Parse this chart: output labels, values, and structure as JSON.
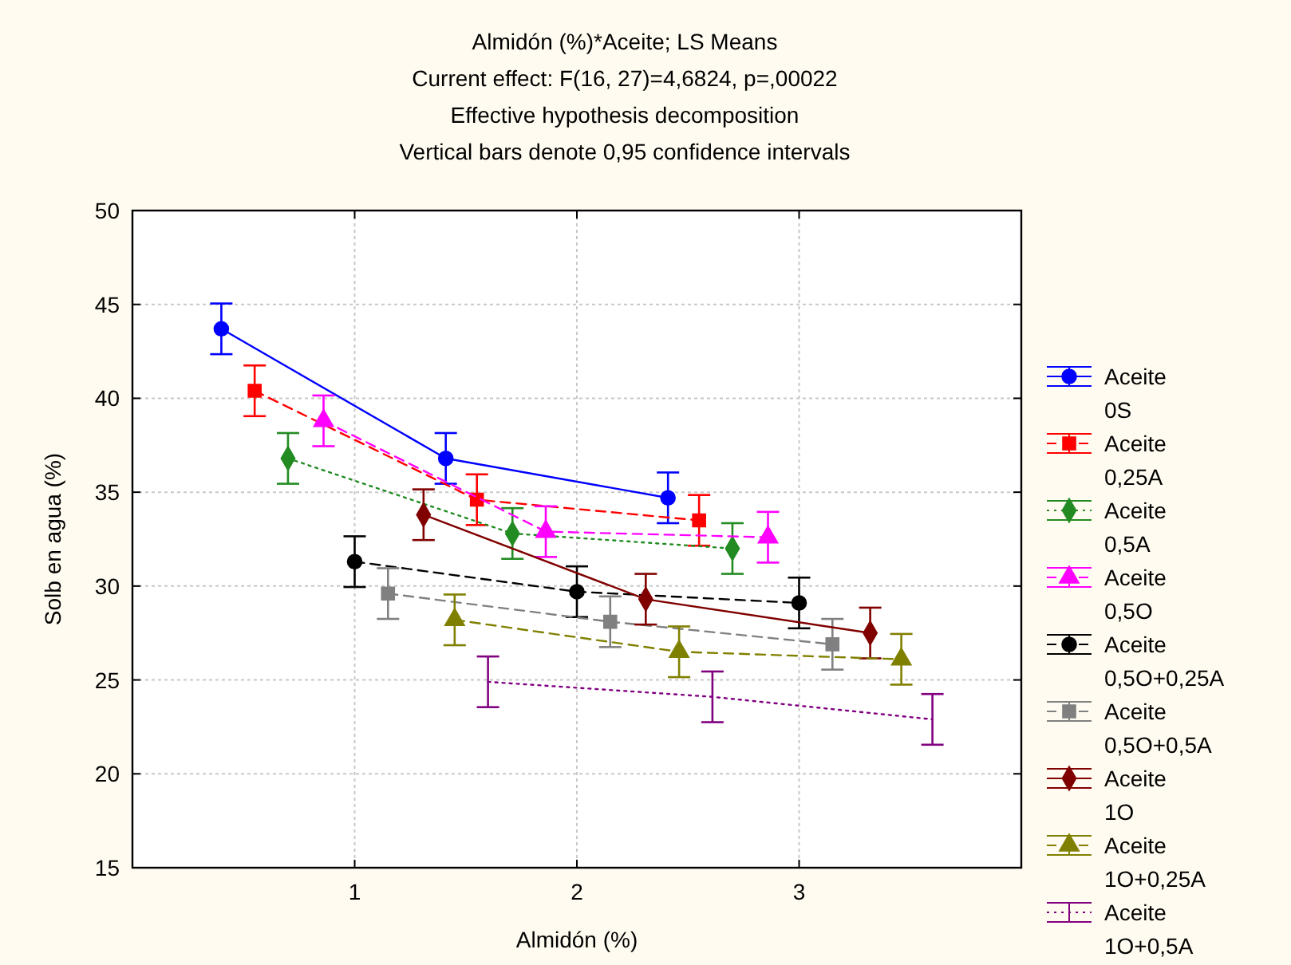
{
  "chart_data": {
    "type": "line",
    "title": "Almidón (%)*Aceite; LS Means",
    "subtitle": "Current effect: F(16, 27)=4,6824, p=,00022",
    "annotations": [
      "Effective hypothesis decomposition",
      "Vertical bars denote 0,95 confidence intervals"
    ],
    "xlabel": "Almidón (%)",
    "ylabel": "Solb en agua (%)",
    "xlim": [
      0,
      4
    ],
    "xticks": [
      1,
      2,
      3
    ],
    "ylim": [
      15,
      50
    ],
    "yticks": [
      15,
      20,
      25,
      30,
      35,
      40,
      45,
      50
    ],
    "grid": true,
    "legend": "right",
    "series": [
      {
        "name": "Aceite 0S",
        "color": "#0000ff",
        "marker": "circle",
        "line_style": "solid",
        "x": [
          0.4,
          1.41,
          2.41
        ],
        "values": [
          43.7,
          36.8,
          34.7
        ],
        "errors": [
          1.35,
          1.35,
          1.35
        ]
      },
      {
        "name": "Aceite 0,25A",
        "color": "#ff0000",
        "marker": "square",
        "line_style": "dashed",
        "x": [
          0.55,
          1.55,
          2.55
        ],
        "values": [
          40.4,
          34.6,
          33.5
        ],
        "errors": [
          1.35,
          1.35,
          1.35
        ]
      },
      {
        "name": "Aceite 0,5A",
        "color": "#228b22",
        "marker": "diamond",
        "line_style": "dotted",
        "x": [
          0.7,
          1.71,
          2.7
        ],
        "values": [
          36.8,
          32.8,
          32.0
        ],
        "errors": [
          1.35,
          1.35,
          1.35
        ]
      },
      {
        "name": "Aceite 0,5O",
        "color": "#ff00ff",
        "marker": "triangle",
        "line_style": "dashed",
        "x": [
          0.86,
          1.86,
          2.86
        ],
        "values": [
          38.8,
          32.9,
          32.6
        ],
        "errors": [
          1.35,
          1.35,
          1.35
        ]
      },
      {
        "name": "Aceite 0,5O+0,25A",
        "color": "#000000",
        "marker": "circle",
        "line_style": "dashed",
        "x": [
          1.0,
          2.0,
          3.0
        ],
        "values": [
          31.3,
          29.7,
          29.1
        ],
        "errors": [
          1.35,
          1.35,
          1.35
        ]
      },
      {
        "name": "Aceite 0,5O+0,5A",
        "color": "#808080",
        "marker": "square",
        "line_style": "dashed",
        "x": [
          1.15,
          2.15,
          3.15
        ],
        "values": [
          29.6,
          28.1,
          26.9
        ],
        "errors": [
          1.35,
          1.35,
          1.35
        ]
      },
      {
        "name": "Aceite 1O",
        "color": "#800000",
        "marker": "diamond",
        "line_style": "solid",
        "x": [
          1.31,
          2.31,
          3.32
        ],
        "values": [
          33.8,
          29.3,
          27.5
        ],
        "errors": [
          1.35,
          1.35,
          1.35
        ]
      },
      {
        "name": "Aceite 1O+0,25A",
        "color": "#808000",
        "marker": "triangle",
        "line_style": "dashed",
        "x": [
          1.45,
          2.46,
          3.46
        ],
        "values": [
          28.2,
          26.5,
          26.1
        ],
        "errors": [
          1.35,
          1.35,
          1.35
        ]
      },
      {
        "name": "Aceite 1O+0,5A",
        "color": "#800080",
        "marker": "none",
        "line_style": "dotted",
        "x": [
          1.6,
          2.61,
          3.6
        ],
        "values": [
          24.9,
          24.1,
          22.9
        ],
        "errors": [
          1.35,
          1.35,
          1.35
        ]
      }
    ]
  }
}
